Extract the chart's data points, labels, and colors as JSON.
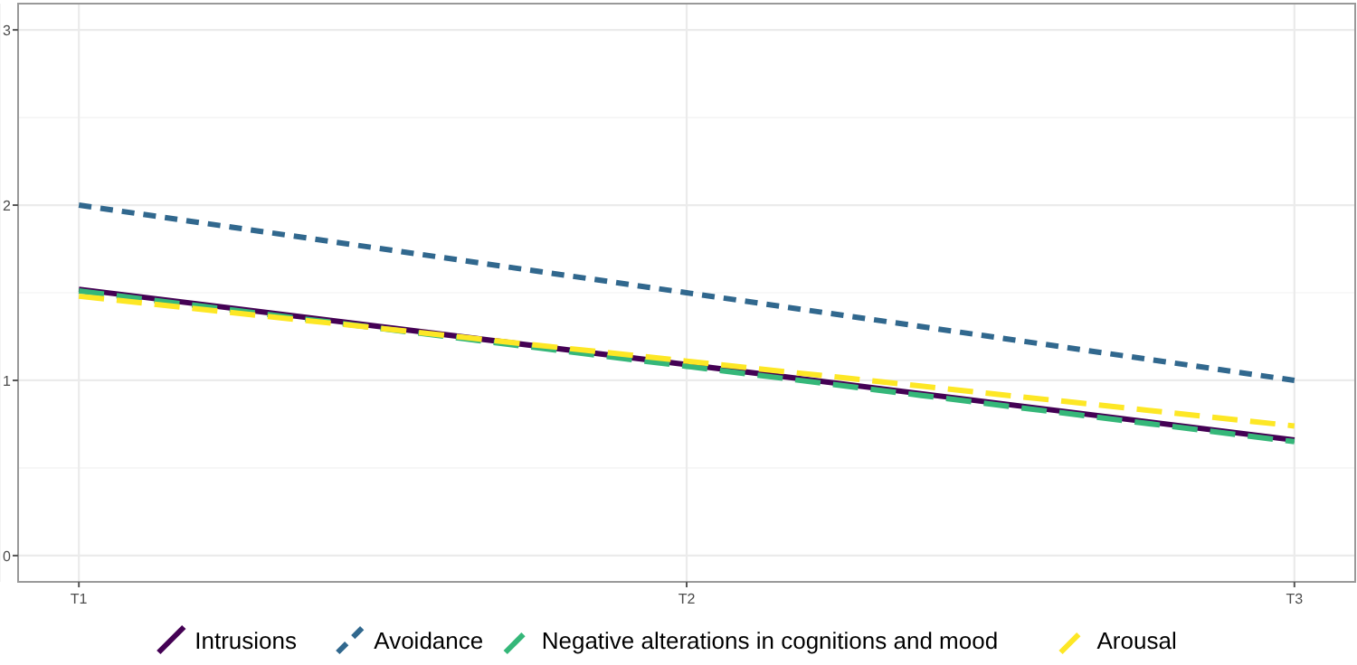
{
  "chart_data": {
    "type": "line",
    "categories": [
      "T1",
      "T2",
      "T3"
    ],
    "ylim": [
      -0.15,
      3.15
    ],
    "yticks": [
      0,
      1,
      2,
      3
    ],
    "grid": true,
    "legend": "bottom",
    "series": [
      {
        "name": "Intrusions",
        "color": "#440154",
        "line_style": "solid",
        "values": [
          1.52,
          1.09,
          0.66
        ]
      },
      {
        "name": "Avoidance",
        "color": "#31688e",
        "line_style": "dotted",
        "values": [
          2.0,
          1.5,
          1.0
        ]
      },
      {
        "name": "Negative alterations in cognitions and mood",
        "color": "#35b779",
        "line_style": "dashed",
        "values": [
          1.51,
          1.08,
          0.65
        ]
      },
      {
        "name": "Arousal",
        "color": "#fde725",
        "line_style": "dashed",
        "values": [
          1.48,
          1.11,
          0.74
        ]
      }
    ]
  }
}
